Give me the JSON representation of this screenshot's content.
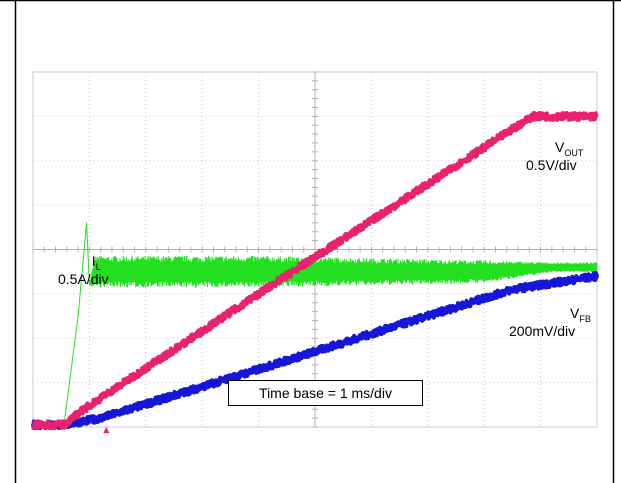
{
  "chart_data": {
    "type": "line",
    "title": "",
    "xlabel": "",
    "ylabel": "",
    "x_divisions": 10,
    "y_divisions": 8,
    "grid": true,
    "annotation": "Time base = 1 ms/div",
    "colors": {
      "vout": "#e8226c",
      "il": "#22e01f",
      "vfb": "#1616d6",
      "grid": "#c8c8c8"
    },
    "series": [
      {
        "key": "vout",
        "label_main": "V",
        "label_sub": "OUT",
        "scale": "0.5V/div",
        "x_div": [
          0,
          0.55,
          0.9,
          4,
          8.85,
          10
        ],
        "y_div": [
          0.05,
          0.05,
          0.4,
          3.0,
          7.0,
          7.0
        ]
      },
      {
        "key": "il",
        "label_main": "I",
        "label_sub": "L",
        "scale": "0.5A/div",
        "x_div": [
          0,
          0.55,
          0.8,
          0.95,
          1.0,
          1.1,
          2,
          4,
          6,
          8,
          9.2,
          10
        ],
        "y_div": [
          0.05,
          0.05,
          2.5,
          4.6,
          3.2,
          3.5,
          3.5,
          3.5,
          3.5,
          3.5,
          3.6,
          3.6
        ],
        "ripple_div": [
          0,
          0,
          0,
          0,
          0,
          0.35,
          0.35,
          0.35,
          0.3,
          0.25,
          0.1,
          0.1
        ]
      },
      {
        "key": "vfb",
        "label_main": "V",
        "label_sub": "FB",
        "scale": "200mV/div",
        "x_div": [
          0,
          0.55,
          1.2,
          4,
          8.5,
          10
        ],
        "y_div": [
          0.05,
          0.05,
          0.2,
          1.3,
          3.1,
          3.4
        ]
      }
    ]
  }
}
